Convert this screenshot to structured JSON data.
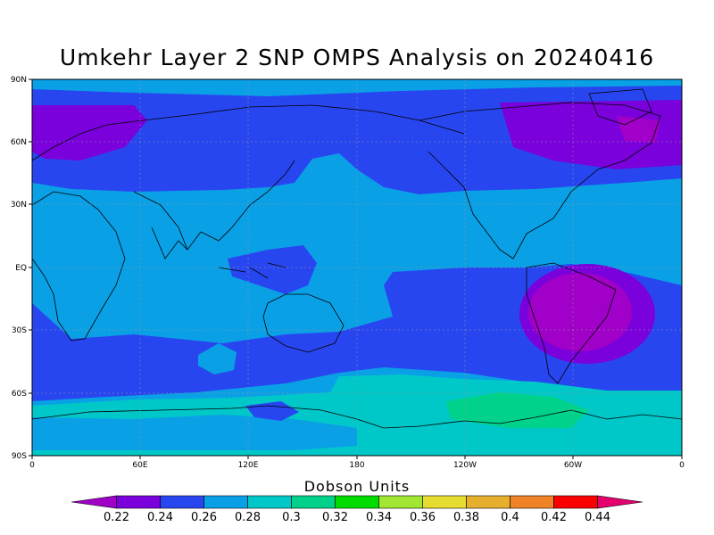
{
  "title": "Umkehr Layer 2 SNP OMPS Analysis on 20240416",
  "lat_labels": [
    "90N",
    "60N",
    "30N",
    "EQ",
    "30S",
    "60S",
    "90S"
  ],
  "lon_labels": [
    "0",
    "60E",
    "120E",
    "180",
    "120W",
    "60W",
    "0"
  ],
  "colorbar": {
    "title": "Dobson Units",
    "labels": [
      "0.22",
      "0.24",
      "0.26",
      "0.28",
      "0.3",
      "0.32",
      "0.34",
      "0.36",
      "0.38",
      "0.4",
      "0.42",
      "0.44"
    ],
    "colors": [
      "#a000c8",
      "#7a00dc",
      "#2846f0",
      "#0aa0e6",
      "#00c8c8",
      "#00d28c",
      "#00dc00",
      "#a0e632",
      "#e6dc32",
      "#e6af2d",
      "#f08228",
      "#fa0000",
      "#e6006e"
    ]
  },
  "chart_data": {
    "type": "heatmap",
    "title": "Umkehr Layer 2 SNP OMPS Analysis on 20240416",
    "xlabel": "",
    "ylabel": "",
    "x_range": [
      "0",
      "0"
    ],
    "y_range": [
      "90S",
      "90N"
    ],
    "units": "Dobson Units",
    "color_levels": [
      0.22,
      0.24,
      0.26,
      0.28,
      0.3,
      0.32,
      0.34,
      0.36,
      0.38,
      0.4,
      0.42,
      0.44
    ],
    "grid": true
  }
}
